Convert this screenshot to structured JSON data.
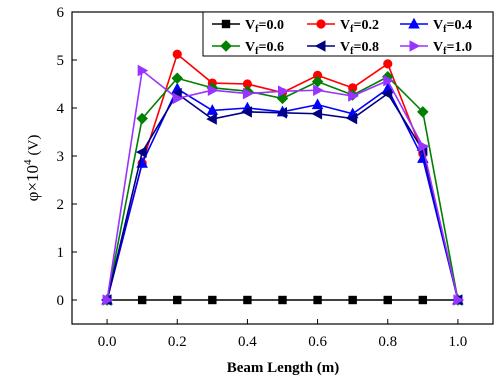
{
  "chart_data": {
    "type": "line",
    "title": "",
    "xlabel": "Beam Length (m)",
    "ylabel_symbol": "φ×10",
    "ylabel_exponent": "4",
    "ylabel_unit": "(V)",
    "xlim": [
      -0.1,
      1.1
    ],
    "ylim": [
      -0.5,
      6
    ],
    "xticks": [
      "0.0",
      "0.2",
      "0.4",
      "0.6",
      "0.8",
      "1.0"
    ],
    "xtick_values": [
      0,
      0.2,
      0.4,
      0.6,
      0.8,
      1.0
    ],
    "yticks": [
      "0",
      "1",
      "2",
      "3",
      "4",
      "5",
      "6"
    ],
    "ytick_values": [
      0,
      1,
      2,
      3,
      4,
      5,
      6
    ],
    "grid": false,
    "legend_placement": "top-right",
    "x": [
      0,
      0.1,
      0.2,
      0.3,
      0.4,
      0.5,
      0.6,
      0.7,
      0.8,
      0.9,
      1.0
    ],
    "series": [
      {
        "name": "Vf=0.0",
        "label_base": "V",
        "label_sub": "f",
        "label_rest": "=0.0",
        "color": "#000000",
        "marker": "square",
        "values": [
          0,
          0,
          0,
          0,
          0,
          0,
          0,
          0,
          0,
          0,
          0
        ]
      },
      {
        "name": "Vf=0.2",
        "label_base": "V",
        "label_sub": "f",
        "label_rest": "=0.2",
        "color": "#ff0000",
        "marker": "circle",
        "values": [
          0,
          2.85,
          5.12,
          4.52,
          4.5,
          4.32,
          4.68,
          4.42,
          4.92,
          3.05,
          0
        ]
      },
      {
        "name": "Vf=0.4",
        "label_base": "V",
        "label_sub": "f",
        "label_rest": "=0.4",
        "color": "#0000ff",
        "marker": "triangle-up",
        "values": [
          0,
          2.85,
          4.4,
          3.95,
          4.0,
          3.92,
          4.07,
          3.88,
          4.4,
          2.95,
          0
        ]
      },
      {
        "name": "Vf=0.6",
        "label_base": "V",
        "label_sub": "f",
        "label_rest": "=0.6",
        "color": "#008000",
        "marker": "diamond",
        "values": [
          0,
          3.78,
          4.62,
          4.42,
          4.35,
          4.2,
          4.55,
          4.27,
          4.65,
          3.92,
          0
        ]
      },
      {
        "name": "Vf=0.8",
        "label_base": "V",
        "label_sub": "f",
        "label_rest": "=0.8",
        "color": "#000080",
        "marker": "triangle-left",
        "values": [
          0,
          3.08,
          4.3,
          3.77,
          3.92,
          3.9,
          3.88,
          3.78,
          4.3,
          3.12,
          0
        ]
      },
      {
        "name": "Vf=1.0",
        "label_base": "V",
        "label_sub": "f",
        "label_rest": "=1.0",
        "color": "#9933ff",
        "marker": "triangle-right",
        "values": [
          0,
          4.78,
          4.2,
          4.37,
          4.3,
          4.35,
          4.37,
          4.25,
          4.57,
          3.2,
          0
        ]
      }
    ]
  }
}
